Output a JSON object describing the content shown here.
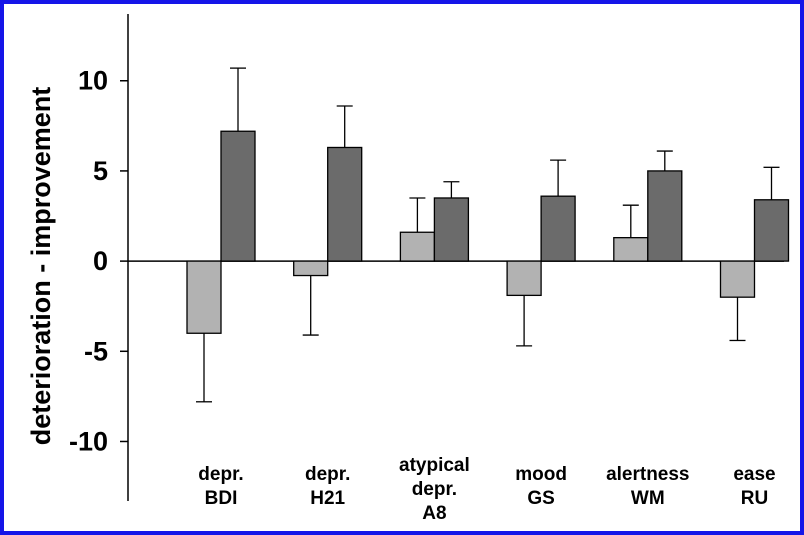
{
  "chart_data": {
    "type": "bar",
    "title": "",
    "xlabel": "",
    "ylabel": "deterioration - improvement",
    "ylim": [
      -13.3,
      13.7
    ],
    "yticks": [
      10,
      5,
      0,
      -5,
      -10
    ],
    "ytick_labels": [
      "10",
      "5",
      "0",
      "-5",
      "-10"
    ],
    "grid": false,
    "legend": "none",
    "categories": [
      [
        "depr.",
        "BDI"
      ],
      [
        "depr.",
        "H21"
      ],
      [
        "atypical",
        "depr.",
        "A8"
      ],
      [
        "mood",
        "GS"
      ],
      [
        "alertness",
        "WM"
      ],
      [
        "ease",
        "RU"
      ]
    ],
    "series": [
      {
        "color": "#b2b2b2",
        "values": [
          -4.0,
          -0.8,
          1.6,
          -1.9,
          1.3,
          -2.0
        ],
        "errors": [
          3.8,
          3.3,
          1.9,
          2.8,
          1.8,
          2.4
        ]
      },
      {
        "color": "#6b6b6b",
        "values": [
          7.2,
          6.3,
          3.5,
          3.6,
          5.0,
          3.4
        ],
        "errors": [
          3.5,
          2.3,
          0.9,
          2.0,
          1.1,
          1.8
        ]
      }
    ],
    "frame_color": "#1515e8"
  }
}
